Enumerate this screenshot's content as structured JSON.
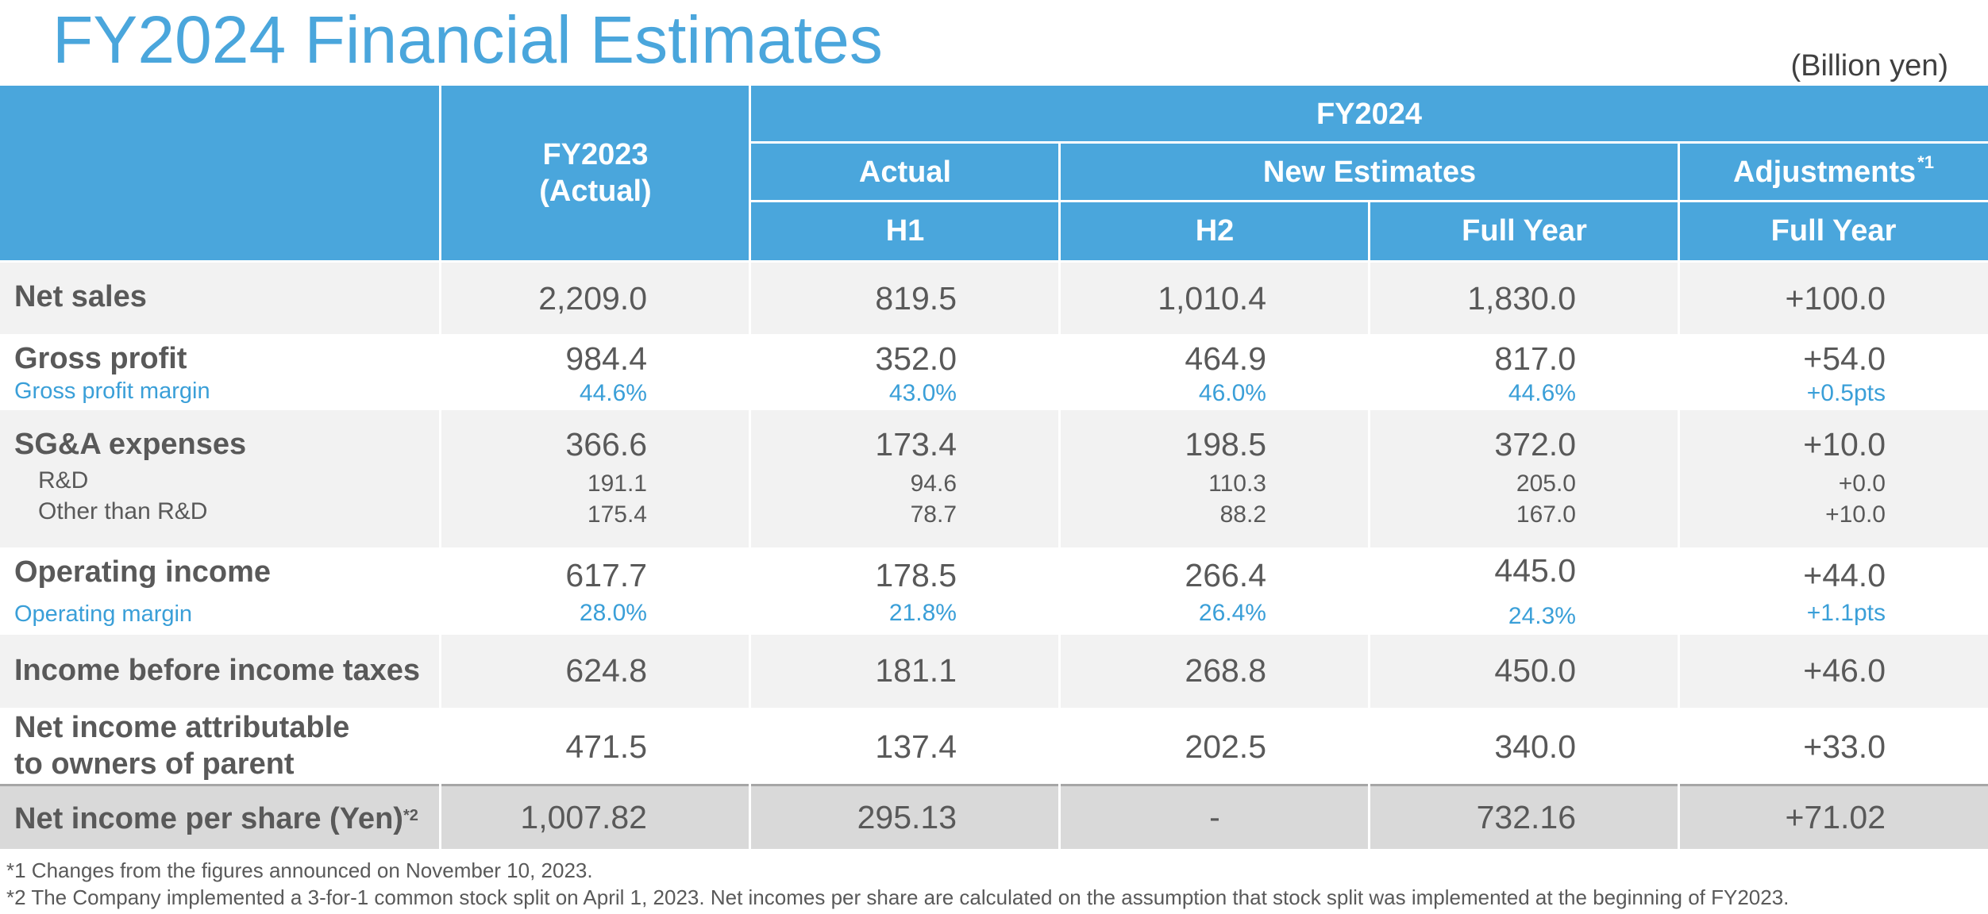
{
  "title": "FY2024 Financial Estimates",
  "unit": "(Billion yen)",
  "header": {
    "fy2023_line1": "FY2023",
    "fy2023_line2": "(Actual)",
    "fy2024": "FY2024",
    "actual": "Actual",
    "new_estimates": "New Estimates",
    "adjustments": "Adjustments",
    "adjustments_note": "*1",
    "h1": "H1",
    "h2": "H2",
    "full_year_est": "Full Year",
    "full_year_adj": "Full Year"
  },
  "rows": {
    "net_sales": {
      "label": "Net sales",
      "v": [
        "2,209.0",
        "819.5",
        "1,010.4",
        "1,830.0",
        "+100.0"
      ]
    },
    "gross_profit": {
      "label": "Gross profit",
      "v": [
        "984.4",
        "352.0",
        "464.9",
        "817.0",
        "+54.0"
      ],
      "sub_label": "Gross profit margin",
      "sub": [
        "44.6%",
        "43.0%",
        "46.0%",
        "44.6%",
        "+0.5pts"
      ]
    },
    "sga": {
      "label": "SG&A expenses",
      "v": [
        "366.6",
        "173.4",
        "198.5",
        "372.0",
        "+10.0"
      ],
      "rd_label": "R&D",
      "rd": [
        "191.1",
        "94.6",
        "110.3",
        "205.0",
        "+0.0"
      ],
      "other_label": "Other than R&D",
      "other": [
        "175.4",
        "78.7",
        "88.2",
        "167.0",
        "+10.0"
      ]
    },
    "operating_income": {
      "label": "Operating income",
      "v": [
        "617.7",
        "178.5",
        "266.4",
        "445.0",
        "+44.0"
      ],
      "sub_label": "Operating margin",
      "sub": [
        "28.0%",
        "21.8%",
        "26.4%",
        "24.3%",
        "+1.1pts"
      ]
    },
    "income_before_tax": {
      "label": "Income before income taxes",
      "v": [
        "624.8",
        "181.1",
        "268.8",
        "450.0",
        "+46.0"
      ]
    },
    "net_income": {
      "label_line1": "Net income attributable",
      "label_line2": "to owners of parent",
      "v": [
        "471.5",
        "137.4",
        "202.5",
        "340.0",
        "+33.0"
      ]
    },
    "eps": {
      "label": "Net income per share (Yen)",
      "note": "*2",
      "v": [
        "1,007.82",
        "295.13",
        "-",
        "732.16",
        "+71.02"
      ]
    }
  },
  "footnotes": {
    "f1": "*1 Changes from the figures announced on November 10, 2023.",
    "f2": "*2 The Company implemented a 3-for-1 common stock split on April 1, 2023. Net incomes per share are calculated on the assumption that stock split was implemented at the beginning of FY2023."
  }
}
